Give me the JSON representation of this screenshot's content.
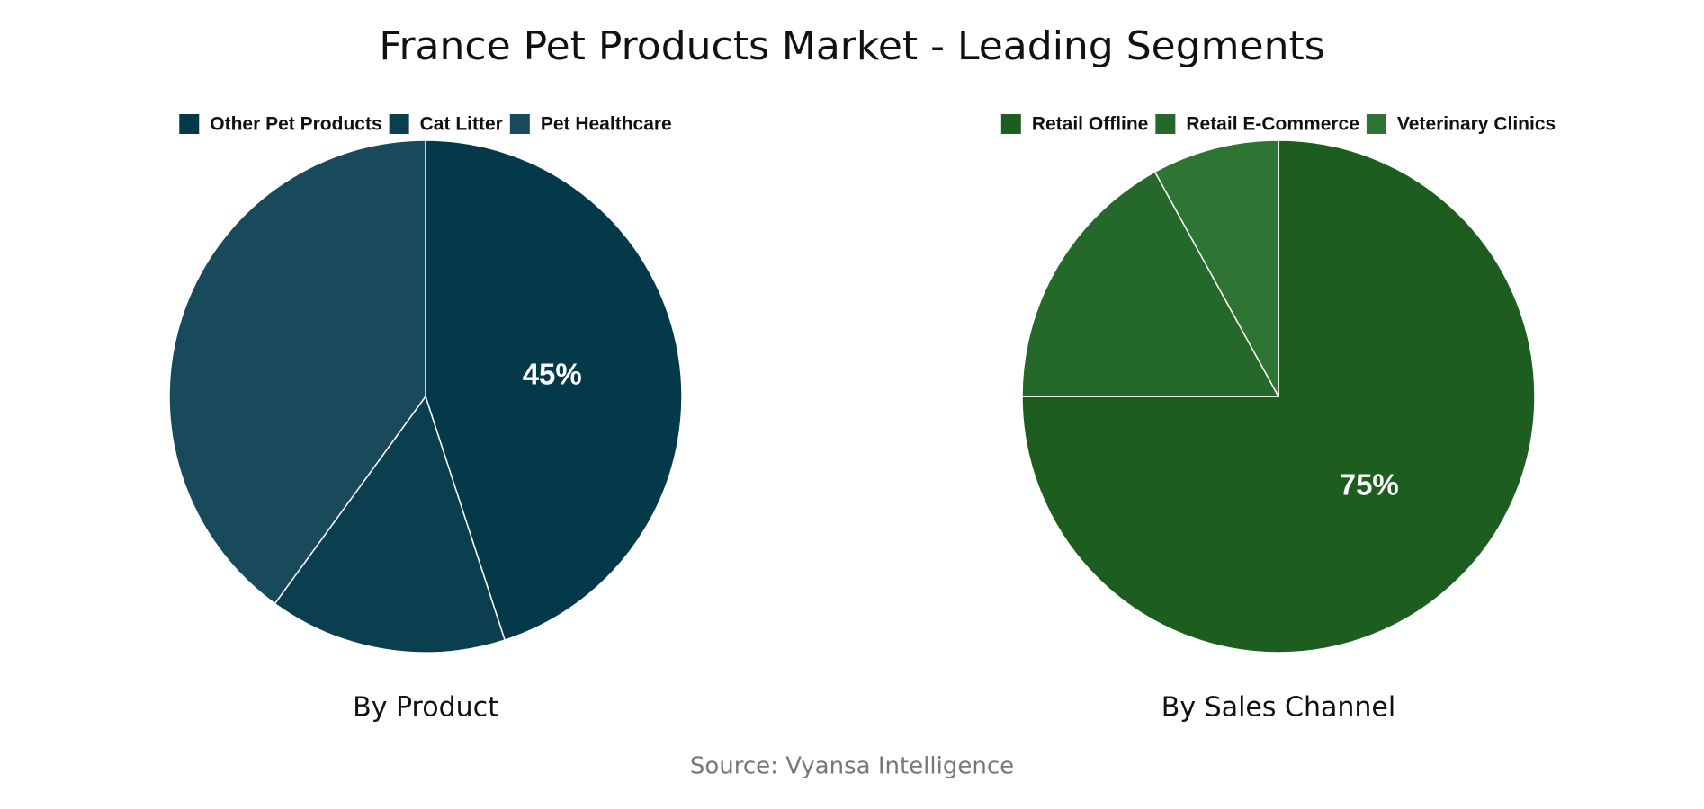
{
  "title": "France Pet Products Market - Leading Segments",
  "source": "Source: Vyansa Intelligence",
  "chart_data": [
    {
      "type": "pie",
      "subtitle": "By Product",
      "categories": [
        "Other Pet Products",
        "Cat Litter",
        "Pet Healthcare"
      ],
      "values": [
        45,
        15,
        40
      ],
      "value_labels": [
        "45%",
        null,
        null
      ],
      "colors": [
        "#04394a",
        "#0b3f50",
        "#184a5c"
      ]
    },
    {
      "type": "pie",
      "subtitle": "By Sales Channel",
      "categories": [
        "Retail Offline",
        "Retail E-Commerce",
        "Veterinary Clinics"
      ],
      "values": [
        75,
        17,
        8
      ],
      "value_labels": [
        "75%",
        null,
        null
      ],
      "colors": [
        "#1d5e20",
        "#24692a",
        "#2e7533"
      ]
    }
  ]
}
